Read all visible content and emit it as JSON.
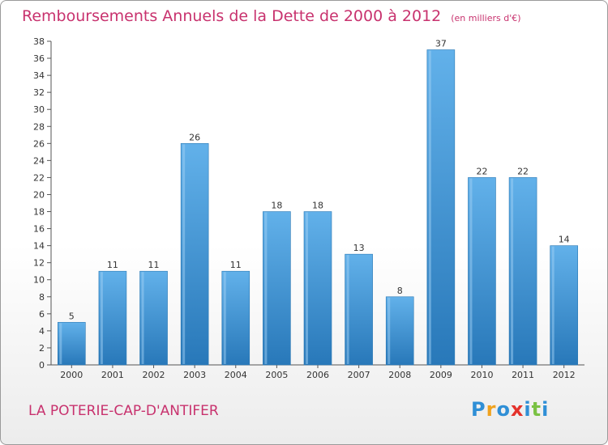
{
  "header": {
    "title": "Remboursements Annuels de la Dette de 2000 à 2012",
    "unit": "(en milliers d'€)"
  },
  "footer": {
    "commune": "LA POTERIE-CAP-D'ANTIFER",
    "logo_letters": [
      "P",
      "r",
      "o",
      "x",
      "i",
      "t",
      "i"
    ],
    "logo_colors": [
      "#2f8fd6",
      "#f0a21e",
      "#2f8fd6",
      "#e4322b",
      "#2f8fd6",
      "#7ac143",
      "#2f8fd6"
    ]
  },
  "colors": {
    "bar": "#4a9fdf",
    "bar_light": "#62b1ea",
    "bar_dark": "#2878b9",
    "accent": "#c8326e"
  },
  "chart_data": {
    "type": "bar",
    "categories": [
      "2000",
      "2001",
      "2002",
      "2003",
      "2004",
      "2005",
      "2006",
      "2007",
      "2008",
      "2009",
      "2010",
      "2011",
      "2012"
    ],
    "values": [
      5,
      11,
      11,
      26,
      11,
      18,
      18,
      13,
      8,
      37,
      22,
      22,
      14
    ],
    "title": "Remboursements Annuels de la Dette de 2000 à 2012",
    "ylim": [
      0,
      38
    ],
    "yticks": [
      0,
      2,
      4,
      6,
      8,
      10,
      12,
      14,
      16,
      18,
      20,
      22,
      24,
      26,
      28,
      30,
      32,
      34,
      36,
      38
    ],
    "grid": false,
    "data_labels": true
  }
}
